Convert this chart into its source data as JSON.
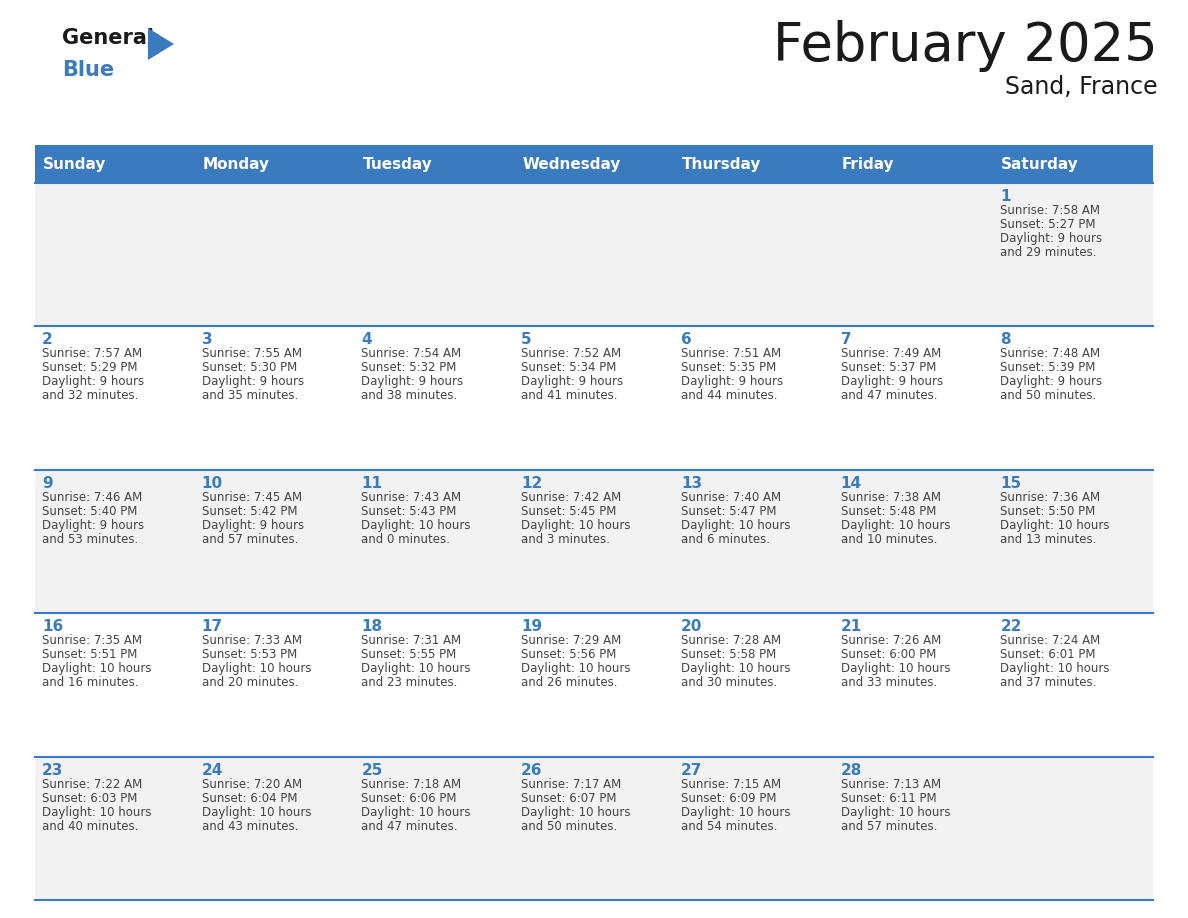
{
  "title": "February 2025",
  "subtitle": "Sand, France",
  "days_of_week": [
    "Sunday",
    "Monday",
    "Tuesday",
    "Wednesday",
    "Thursday",
    "Friday",
    "Saturday"
  ],
  "header_bg": "#3a7bbf",
  "header_text": "#ffffff",
  "row_bg_even": "#f2f2f2",
  "row_bg_odd": "#ffffff",
  "border_color": "#3a7bbf",
  "day_num_color": "#3a7bbf",
  "text_color": "#444444",
  "calendar_data": [
    {
      "day": 1,
      "col": 6,
      "row": 0,
      "sunrise": "7:58 AM",
      "sunset": "5:27 PM",
      "daylight_h": "9 hours",
      "daylight_m": "29 minutes"
    },
    {
      "day": 2,
      "col": 0,
      "row": 1,
      "sunrise": "7:57 AM",
      "sunset": "5:29 PM",
      "daylight_h": "9 hours",
      "daylight_m": "32 minutes"
    },
    {
      "day": 3,
      "col": 1,
      "row": 1,
      "sunrise": "7:55 AM",
      "sunset": "5:30 PM",
      "daylight_h": "9 hours",
      "daylight_m": "35 minutes"
    },
    {
      "day": 4,
      "col": 2,
      "row": 1,
      "sunrise": "7:54 AM",
      "sunset": "5:32 PM",
      "daylight_h": "9 hours",
      "daylight_m": "38 minutes"
    },
    {
      "day": 5,
      "col": 3,
      "row": 1,
      "sunrise": "7:52 AM",
      "sunset": "5:34 PM",
      "daylight_h": "9 hours",
      "daylight_m": "41 minutes"
    },
    {
      "day": 6,
      "col": 4,
      "row": 1,
      "sunrise": "7:51 AM",
      "sunset": "5:35 PM",
      "daylight_h": "9 hours",
      "daylight_m": "44 minutes"
    },
    {
      "day": 7,
      "col": 5,
      "row": 1,
      "sunrise": "7:49 AM",
      "sunset": "5:37 PM",
      "daylight_h": "9 hours",
      "daylight_m": "47 minutes"
    },
    {
      "day": 8,
      "col": 6,
      "row": 1,
      "sunrise": "7:48 AM",
      "sunset": "5:39 PM",
      "daylight_h": "9 hours",
      "daylight_m": "50 minutes"
    },
    {
      "day": 9,
      "col": 0,
      "row": 2,
      "sunrise": "7:46 AM",
      "sunset": "5:40 PM",
      "daylight_h": "9 hours",
      "daylight_m": "53 minutes"
    },
    {
      "day": 10,
      "col": 1,
      "row": 2,
      "sunrise": "7:45 AM",
      "sunset": "5:42 PM",
      "daylight_h": "9 hours",
      "daylight_m": "57 minutes"
    },
    {
      "day": 11,
      "col": 2,
      "row": 2,
      "sunrise": "7:43 AM",
      "sunset": "5:43 PM",
      "daylight_h": "10 hours",
      "daylight_m": "0 minutes"
    },
    {
      "day": 12,
      "col": 3,
      "row": 2,
      "sunrise": "7:42 AM",
      "sunset": "5:45 PM",
      "daylight_h": "10 hours",
      "daylight_m": "3 minutes"
    },
    {
      "day": 13,
      "col": 4,
      "row": 2,
      "sunrise": "7:40 AM",
      "sunset": "5:47 PM",
      "daylight_h": "10 hours",
      "daylight_m": "6 minutes"
    },
    {
      "day": 14,
      "col": 5,
      "row": 2,
      "sunrise": "7:38 AM",
      "sunset": "5:48 PM",
      "daylight_h": "10 hours",
      "daylight_m": "10 minutes"
    },
    {
      "day": 15,
      "col": 6,
      "row": 2,
      "sunrise": "7:36 AM",
      "sunset": "5:50 PM",
      "daylight_h": "10 hours",
      "daylight_m": "13 minutes"
    },
    {
      "day": 16,
      "col": 0,
      "row": 3,
      "sunrise": "7:35 AM",
      "sunset": "5:51 PM",
      "daylight_h": "10 hours",
      "daylight_m": "16 minutes"
    },
    {
      "day": 17,
      "col": 1,
      "row": 3,
      "sunrise": "7:33 AM",
      "sunset": "5:53 PM",
      "daylight_h": "10 hours",
      "daylight_m": "20 minutes"
    },
    {
      "day": 18,
      "col": 2,
      "row": 3,
      "sunrise": "7:31 AM",
      "sunset": "5:55 PM",
      "daylight_h": "10 hours",
      "daylight_m": "23 minutes"
    },
    {
      "day": 19,
      "col": 3,
      "row": 3,
      "sunrise": "7:29 AM",
      "sunset": "5:56 PM",
      "daylight_h": "10 hours",
      "daylight_m": "26 minutes"
    },
    {
      "day": 20,
      "col": 4,
      "row": 3,
      "sunrise": "7:28 AM",
      "sunset": "5:58 PM",
      "daylight_h": "10 hours",
      "daylight_m": "30 minutes"
    },
    {
      "day": 21,
      "col": 5,
      "row": 3,
      "sunrise": "7:26 AM",
      "sunset": "6:00 PM",
      "daylight_h": "10 hours",
      "daylight_m": "33 minutes"
    },
    {
      "day": 22,
      "col": 6,
      "row": 3,
      "sunrise": "7:24 AM",
      "sunset": "6:01 PM",
      "daylight_h": "10 hours",
      "daylight_m": "37 minutes"
    },
    {
      "day": 23,
      "col": 0,
      "row": 4,
      "sunrise": "7:22 AM",
      "sunset": "6:03 PM",
      "daylight_h": "10 hours",
      "daylight_m": "40 minutes"
    },
    {
      "day": 24,
      "col": 1,
      "row": 4,
      "sunrise": "7:20 AM",
      "sunset": "6:04 PM",
      "daylight_h": "10 hours",
      "daylight_m": "43 minutes"
    },
    {
      "day": 25,
      "col": 2,
      "row": 4,
      "sunrise": "7:18 AM",
      "sunset": "6:06 PM",
      "daylight_h": "10 hours",
      "daylight_m": "47 minutes"
    },
    {
      "day": 26,
      "col": 3,
      "row": 4,
      "sunrise": "7:17 AM",
      "sunset": "6:07 PM",
      "daylight_h": "10 hours",
      "daylight_m": "50 minutes"
    },
    {
      "day": 27,
      "col": 4,
      "row": 4,
      "sunrise": "7:15 AM",
      "sunset": "6:09 PM",
      "daylight_h": "10 hours",
      "daylight_m": "54 minutes"
    },
    {
      "day": 28,
      "col": 5,
      "row": 4,
      "sunrise": "7:13 AM",
      "sunset": "6:11 PM",
      "daylight_h": "10 hours",
      "daylight_m": "57 minutes"
    }
  ],
  "num_rows": 5,
  "num_cols": 7
}
